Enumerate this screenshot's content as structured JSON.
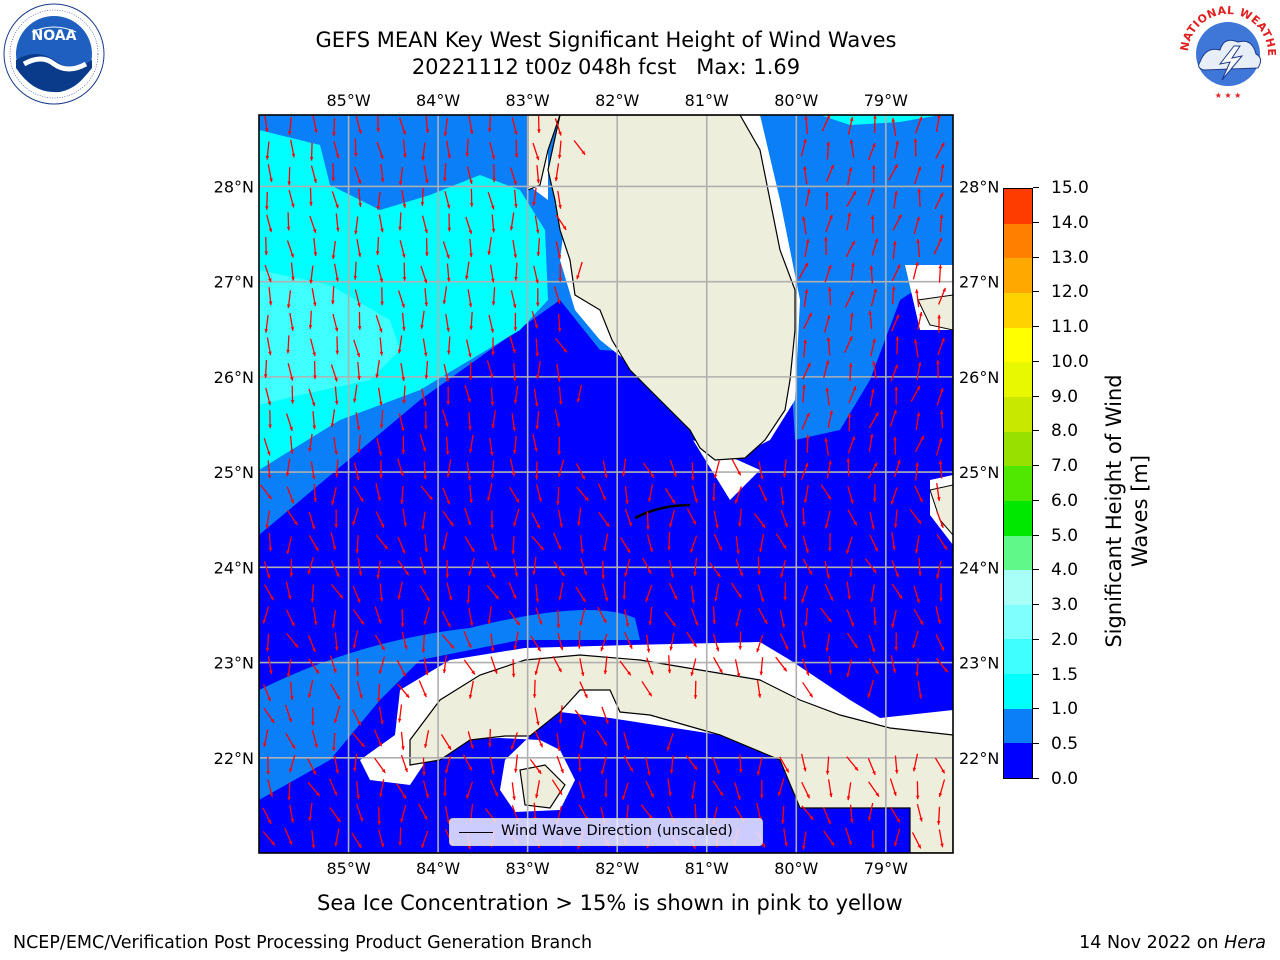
{
  "title": {
    "line1": "GEFS MEAN Key West Significant Height of Wind Waves",
    "line2": "20221112 t00z 048h fcst   Max: 1.69"
  },
  "map": {
    "lon_labels": [
      "85°W",
      "84°W",
      "83°W",
      "82°W",
      "81°W",
      "80°W",
      "79°W"
    ],
    "lat_labels": [
      "28°N",
      "27°N",
      "26°N",
      "25°N",
      "24°N",
      "23°N",
      "22°N"
    ],
    "extent": {
      "lon_min": -86.0,
      "lon_max": -78.25,
      "lat_min": 21.0,
      "lat_max": 28.75
    },
    "land_color": "#eeeedd",
    "grid_color": "#b0b0b0",
    "vector_color": "#ff0000",
    "legend_label": "Wind Wave Direction (unscaled)"
  },
  "colorbar": {
    "label_line1": "Significant Height of Wind",
    "label_line2": "Waves [m]",
    "levels": [
      0.0,
      0.5,
      1.0,
      1.5,
      2.0,
      3.0,
      4.0,
      5.0,
      6.0,
      7.0,
      8.0,
      9.0,
      10.0,
      11.0,
      12.0,
      13.0,
      14.0,
      15.0
    ],
    "tick_labels": [
      "0.0",
      "0.5",
      "1.0",
      "1.5",
      "2.0",
      "3.0",
      "4.0",
      "5.0",
      "6.0",
      "7.0",
      "8.0",
      "9.0",
      "10.0",
      "11.0",
      "12.0",
      "13.0",
      "14.0",
      "15.0"
    ],
    "colors": [
      "#0000ff",
      "#0a7ff8",
      "#00ffff",
      "#40ffff",
      "#80ffff",
      "#a8fff8",
      "#60f888",
      "#00e800",
      "#50e800",
      "#98e000",
      "#c8e800",
      "#e8f800",
      "#ffff00",
      "#ffd200",
      "#ffa800",
      "#ff7f00",
      "#ff3c00",
      "#ff0000"
    ]
  },
  "footer": {
    "ice_note": "Sea Ice Concentration > 15% is shown in pink to yellow",
    "left": "NCEP/EMC/Verification Post Processing Product Generation Branch",
    "right_date": "14 Nov 2022 on ",
    "right_host": "Hera"
  },
  "logos": {
    "noaa_text": "NOAA",
    "nws_text": "NATIONAL WEATHER SERVICE"
  }
}
